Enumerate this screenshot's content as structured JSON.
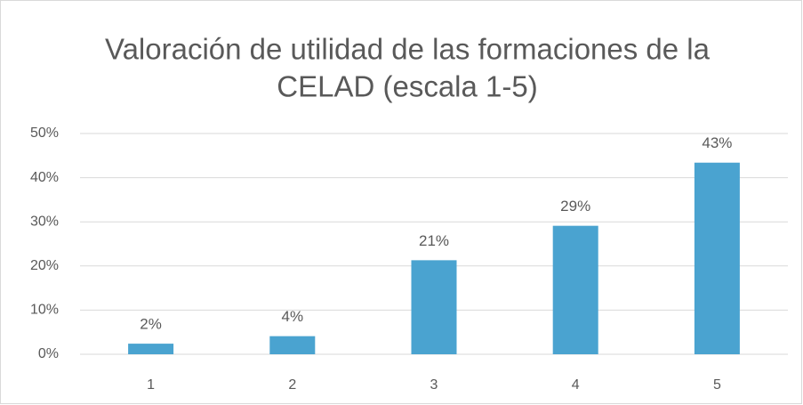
{
  "chart_data": {
    "type": "bar",
    "title": [
      "Valoración de utilidad de las formaciones de la",
      "CELAD (escala 1-5)"
    ],
    "categories": [
      "1",
      "2",
      "3",
      "4",
      "5"
    ],
    "values": [
      2.4,
      4.1,
      21.3,
      29.1,
      43.4
    ],
    "value_labels": [
      "2%",
      "4%",
      "21%",
      "29%",
      "43%"
    ],
    "color": "#4aa3d0",
    "ylim": [
      0,
      50
    ],
    "yticks": [
      {
        "value": 0,
        "label": "0%"
      },
      {
        "value": 10,
        "label": "10%"
      },
      {
        "value": 20,
        "label": "20%"
      },
      {
        "value": 30,
        "label": "30%"
      },
      {
        "value": 40,
        "label": "40%"
      },
      {
        "value": 50,
        "label": "50%"
      }
    ],
    "grid": true
  }
}
